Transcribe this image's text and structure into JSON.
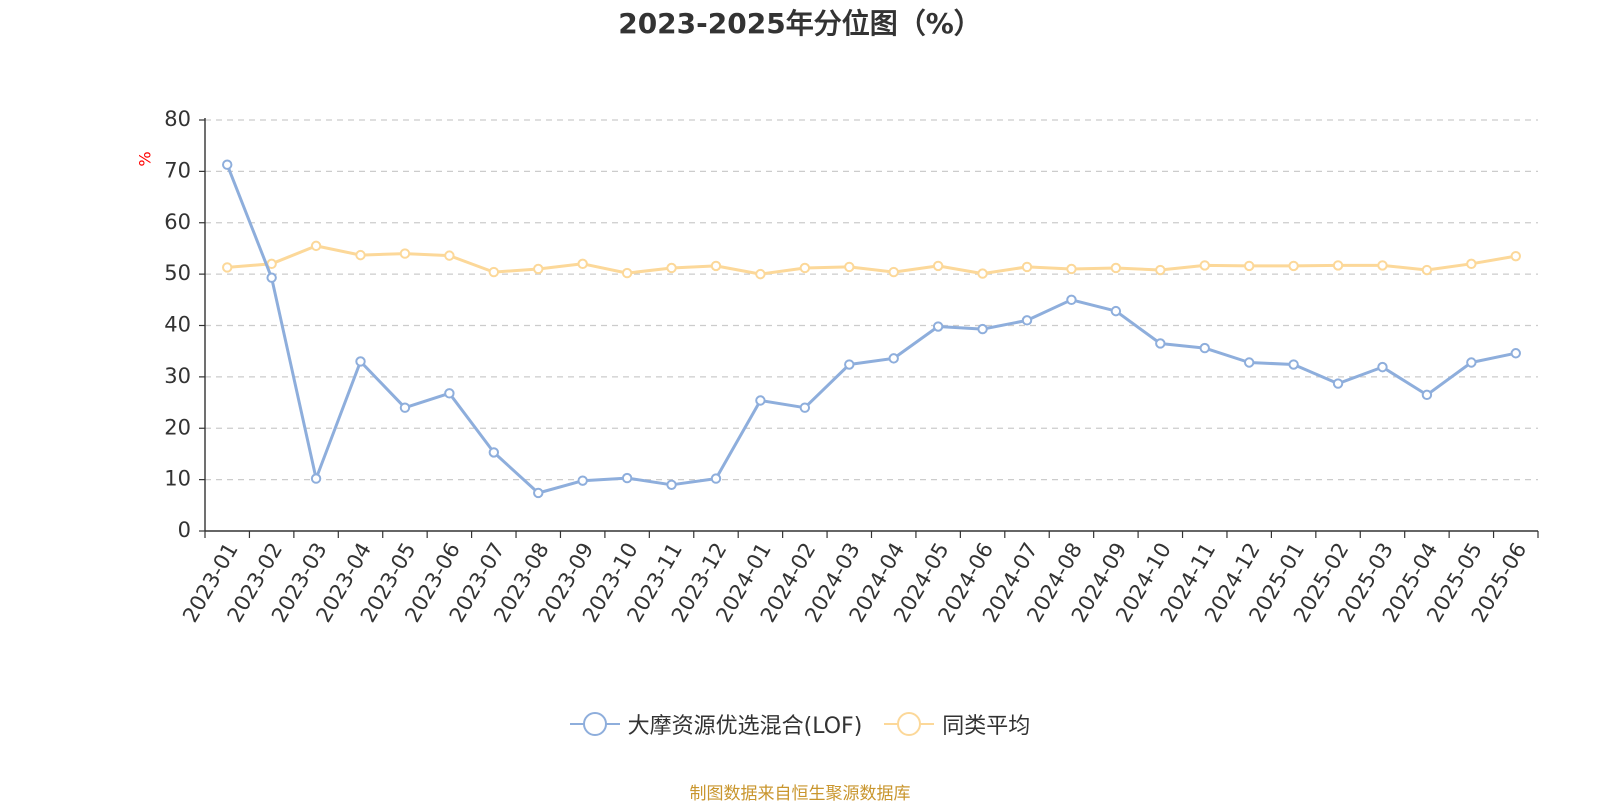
{
  "chart_data": {
    "type": "line",
    "title": "2023-2025年分位图（%）",
    "ylabel": "%",
    "xlabel": "",
    "ylim": [
      0,
      80
    ],
    "yticks": [
      0,
      10,
      20,
      30,
      40,
      50,
      60,
      70,
      80
    ],
    "grid": "horizontal-dashed",
    "legend_position": "bottom",
    "x": [
      "2023-01",
      "2023-02",
      "2023-03",
      "2023-04",
      "2023-05",
      "2023-06",
      "2023-07",
      "2023-08",
      "2023-09",
      "2023-10",
      "2023-11",
      "2023-12",
      "2024-01",
      "2024-02",
      "2024-03",
      "2024-04",
      "2024-05",
      "2024-06",
      "2024-07",
      "2024-08",
      "2024-09",
      "2024-10",
      "2024-11",
      "2024-12",
      "2025-01",
      "2025-02",
      "2025-03",
      "2025-04",
      "2025-05",
      "2025-06"
    ],
    "series": [
      {
        "name": "大摩资源优选混合(LOF)",
        "color": "#8eaedc",
        "values": [
          71.3,
          49.3,
          10.2,
          33.0,
          24.0,
          26.8,
          15.3,
          7.4,
          9.8,
          10.3,
          9.0,
          10.2,
          25.4,
          24.0,
          32.4,
          33.6,
          39.8,
          39.3,
          41.0,
          45.0,
          42.8,
          36.5,
          35.6,
          32.8,
          32.4,
          28.7,
          31.9,
          26.5,
          32.8,
          34.6
        ]
      },
      {
        "name": "同类平均",
        "color": "#fcd899",
        "values": [
          51.3,
          52.0,
          55.5,
          53.7,
          54.0,
          53.6,
          50.4,
          51.0,
          52.0,
          50.2,
          51.2,
          51.6,
          50.0,
          51.2,
          51.4,
          50.4,
          51.6,
          50.1,
          51.4,
          51.0,
          51.2,
          50.8,
          51.7,
          51.6,
          51.6,
          51.7,
          51.7,
          50.8,
          52.0,
          53.5
        ]
      }
    ]
  },
  "footer": {
    "source": "制图数据来自恒生聚源数据库"
  }
}
